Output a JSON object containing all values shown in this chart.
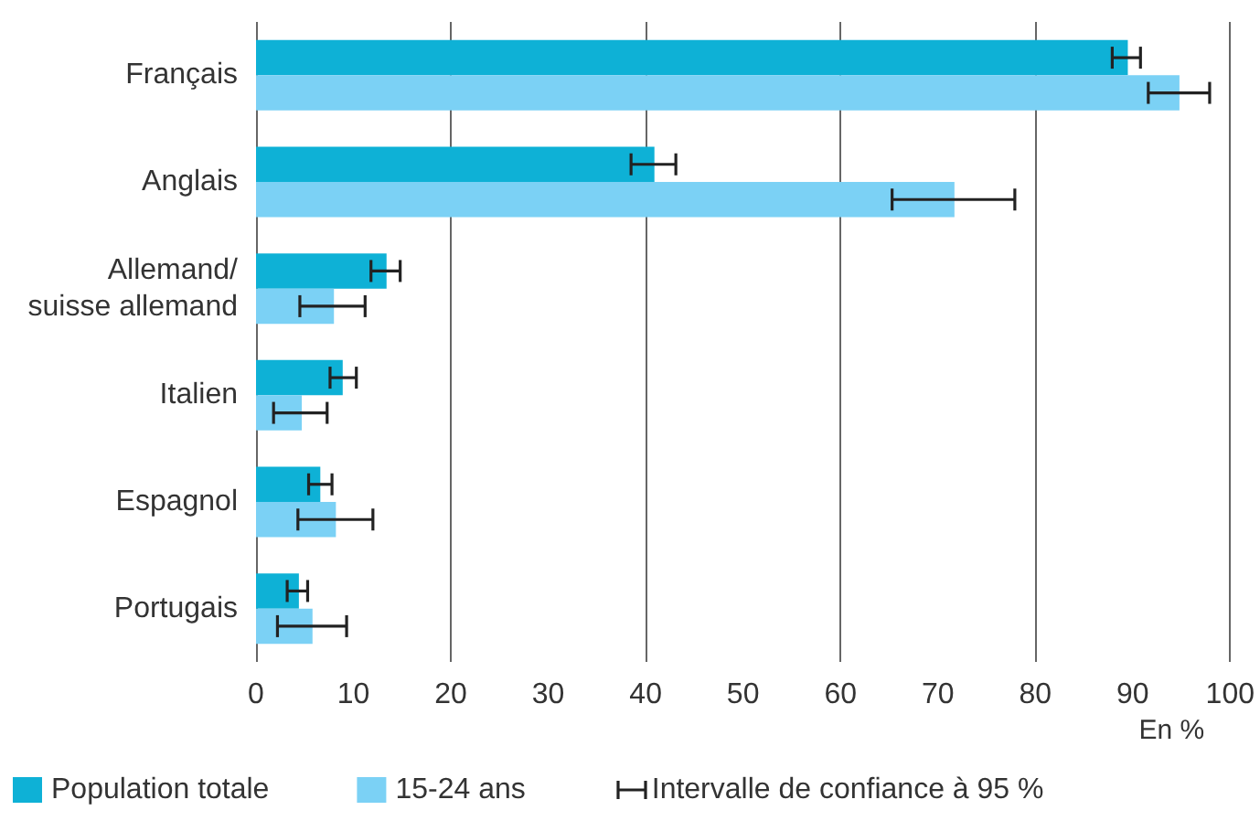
{
  "chart_data": {
    "type": "bar",
    "orientation": "horizontal",
    "xlabel": "En %",
    "categories": [
      "Français",
      "Anglais",
      "Allemand/\nsuisse allemand",
      "Italien",
      "Espagnol",
      "Portugais"
    ],
    "series": [
      {
        "name": "Population totale",
        "color": "#0eb1d6",
        "values": [
          89.5,
          40.9,
          13.4,
          8.9,
          6.6,
          4.4
        ],
        "errors": [
          [
            87.9,
            90.8
          ],
          [
            38.5,
            43.1
          ],
          [
            11.8,
            14.8
          ],
          [
            7.6,
            10.3
          ],
          [
            5.4,
            7.8
          ],
          [
            3.2,
            5.3
          ]
        ]
      },
      {
        "name": "15-24 ans",
        "color": "#7bd1f5",
        "values": [
          94.8,
          71.7,
          8.0,
          4.7,
          8.2,
          5.8
        ],
        "errors": [
          [
            91.6,
            97.9
          ],
          [
            65.3,
            77.9
          ],
          [
            4.5,
            11.2
          ],
          [
            1.8,
            7.3
          ],
          [
            4.3,
            12.0
          ],
          [
            2.2,
            9.3
          ]
        ]
      }
    ],
    "annotations": [
      "Intervalle de confiance à 95 %"
    ],
    "xlim": [
      0,
      100
    ],
    "xticks": [
      0,
      10,
      20,
      30,
      40,
      50,
      60,
      70,
      80,
      90,
      100
    ],
    "grid": "x",
    "legend": "bottom"
  }
}
